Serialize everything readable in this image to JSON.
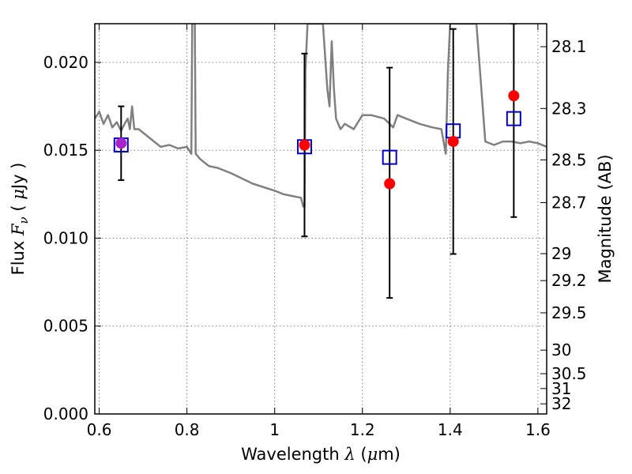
{
  "chart_data": {
    "type": "scatter",
    "title": "",
    "xlabel": {
      "prefix": "Wavelength",
      "symbol": "λ",
      "unit_open": " (",
      "unit_symbol": "μ",
      "unit_rest": "m)"
    },
    "ylabel": {
      "prefix": "Flux",
      "symbol": "F",
      "subscript": "ν",
      "unit_open": " ( ",
      "unit_symbol": "μ",
      "unit_rest": "Jy )"
    },
    "y2label": "Magnitude (AB)",
    "xlim": [
      0.59,
      1.62
    ],
    "ylim": [
      0.0,
      0.0222
    ],
    "grid": true,
    "x_ticks": [
      {
        "value": 0.6,
        "label": "0.6"
      },
      {
        "value": 0.8,
        "label": "0.8"
      },
      {
        "value": 1.0,
        "label": "1"
      },
      {
        "value": 1.2,
        "label": "1.2"
      },
      {
        "value": 1.4,
        "label": "1.4"
      },
      {
        "value": 1.6,
        "label": "1.6"
      }
    ],
    "y_ticks": [
      {
        "value": 0.0,
        "label": "0.000"
      },
      {
        "value": 0.005,
        "label": "0.005"
      },
      {
        "value": 0.01,
        "label": "0.010"
      },
      {
        "value": 0.015,
        "label": "0.015"
      },
      {
        "value": 0.02,
        "label": "0.020"
      }
    ],
    "y2_ticks": [
      {
        "value": 28.1,
        "label": "28.1"
      },
      {
        "value": 28.3,
        "label": "28.3"
      },
      {
        "value": 28.5,
        "label": "28.5"
      },
      {
        "value": 28.7,
        "label": "28.7"
      },
      {
        "value": 29.0,
        "label": "29"
      },
      {
        "value": 29.2,
        "label": "29.2"
      },
      {
        "value": 29.5,
        "label": "29.5"
      },
      {
        "value": 30.0,
        "label": "30"
      },
      {
        "value": 30.5,
        "label": "30.5"
      },
      {
        "value": 31.0,
        "label": "31"
      },
      {
        "value": 32.0,
        "label": "32"
      }
    ],
    "colors": {
      "model": "#808080",
      "model_photometry": "#0000cc",
      "observed": "#ff0000",
      "observed_overlap": "#aa22cc",
      "errorbar": "#000000",
      "grid": "#808080"
    },
    "series": [
      {
        "kind": "line",
        "color": "#808080",
        "x": [
          0.59,
          0.6,
          0.61,
          0.62,
          0.63,
          0.64,
          0.65,
          0.66,
          0.665,
          0.67,
          0.675,
          0.68,
          0.69,
          0.7,
          0.72,
          0.74,
          0.76,
          0.78,
          0.8,
          0.81,
          0.812,
          0.815,
          0.818,
          0.82,
          0.83,
          0.85,
          0.87,
          0.9,
          0.95,
          1.0,
          1.02,
          1.04,
          1.06,
          1.065,
          1.068,
          1.07,
          1.075,
          1.08,
          1.09,
          1.1,
          1.11,
          1.12,
          1.125,
          1.13,
          1.135,
          1.14,
          1.15,
          1.16,
          1.18,
          1.2,
          1.22,
          1.25,
          1.27,
          1.28,
          1.3,
          1.33,
          1.36,
          1.38,
          1.39,
          1.395,
          1.4,
          1.41,
          1.42,
          1.43,
          1.44,
          1.45,
          1.46,
          1.48,
          1.5,
          1.52,
          1.54,
          1.56,
          1.58,
          1.6,
          1.62
        ],
        "y": [
          0.0168,
          0.0172,
          0.0165,
          0.017,
          0.0163,
          0.0166,
          0.0161,
          0.0166,
          0.0168,
          0.0162,
          0.0175,
          0.0162,
          0.0162,
          0.016,
          0.0156,
          0.0152,
          0.0153,
          0.0151,
          0.0152,
          0.0148,
          0.0222,
          0.0222,
          0.0222,
          0.0148,
          0.0145,
          0.0141,
          0.014,
          0.0137,
          0.0131,
          0.0127,
          0.0125,
          0.0124,
          0.0123,
          0.0118,
          0.0118,
          0.0195,
          0.0222,
          0.0222,
          0.0222,
          0.0222,
          0.0222,
          0.0185,
          0.0175,
          0.0212,
          0.0185,
          0.0168,
          0.0162,
          0.0165,
          0.0162,
          0.017,
          0.017,
          0.0168,
          0.0163,
          0.017,
          0.0168,
          0.0165,
          0.0163,
          0.0162,
          0.0148,
          0.0195,
          0.0222,
          0.0222,
          0.0222,
          0.0222,
          0.0222,
          0.0222,
          0.0222,
          0.0155,
          0.0153,
          0.0155,
          0.0155,
          0.0154,
          0.0155,
          0.0154,
          0.0152
        ]
      },
      {
        "kind": "errorbar",
        "color": "#000000",
        "x": [
          0.65,
          1.068,
          1.262,
          1.407,
          1.545
        ],
        "ylow": [
          0.0133,
          0.0101,
          0.0066,
          0.0091,
          0.0112
        ],
        "yhigh": [
          0.0175,
          0.0205,
          0.0197,
          0.0219,
          0.0222
        ]
      },
      {
        "kind": "square",
        "color": "#0000cc",
        "x": [
          0.65,
          1.068,
          1.262,
          1.407,
          1.545
        ],
        "y": [
          0.0153,
          0.0152,
          0.0146,
          0.0161,
          0.0168
        ]
      },
      {
        "kind": "circle",
        "color": "#ff0000",
        "x": [
          0.65,
          1.068,
          1.262,
          1.407,
          1.545
        ],
        "y": [
          0.0154,
          0.0153,
          0.0131,
          0.0155,
          0.0181
        ]
      }
    ]
  }
}
